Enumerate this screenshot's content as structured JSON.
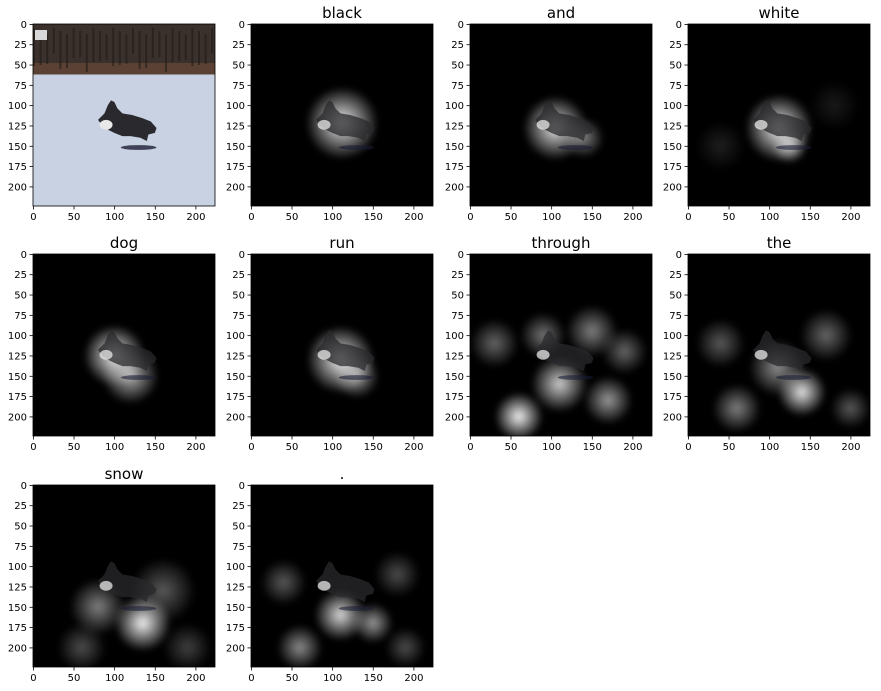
{
  "chart_data": {
    "type": "image-grid",
    "description": "Attention heatmaps over an image of a dog running in snow, one per generated caption word",
    "image_size": [
      224,
      224
    ],
    "x_ticks": [
      0,
      50,
      100,
      150,
      200
    ],
    "y_ticks": [
      0,
      25,
      50,
      75,
      100,
      125,
      150,
      175,
      200
    ],
    "panels": [
      {
        "title": "",
        "kind": "original",
        "blobs": []
      },
      {
        "title": "black",
        "kind": "attention",
        "blobs": [
          {
            "cx": 112,
            "cy": 122,
            "r": 45,
            "v": 0.95
          }
        ]
      },
      {
        "title": "and",
        "kind": "attention",
        "blobs": [
          {
            "cx": 105,
            "cy": 128,
            "r": 40,
            "v": 0.9
          },
          {
            "cx": 140,
            "cy": 140,
            "r": 25,
            "v": 0.5
          }
        ]
      },
      {
        "title": "white",
        "kind": "attention",
        "blobs": [
          {
            "cx": 112,
            "cy": 128,
            "r": 42,
            "v": 0.95
          },
          {
            "cx": 125,
            "cy": 150,
            "r": 22,
            "v": 0.7
          },
          {
            "cx": 40,
            "cy": 150,
            "r": 30,
            "v": 0.12
          },
          {
            "cx": 180,
            "cy": 100,
            "r": 30,
            "v": 0.1
          }
        ]
      },
      {
        "title": "dog",
        "kind": "attention",
        "blobs": [
          {
            "cx": 100,
            "cy": 125,
            "r": 38,
            "v": 0.95
          },
          {
            "cx": 120,
            "cy": 150,
            "r": 35,
            "v": 0.7
          }
        ]
      },
      {
        "title": "run",
        "kind": "attention",
        "blobs": [
          {
            "cx": 110,
            "cy": 130,
            "r": 42,
            "v": 0.95
          },
          {
            "cx": 130,
            "cy": 150,
            "r": 28,
            "v": 0.6
          }
        ]
      },
      {
        "title": "through",
        "kind": "attention",
        "blobs": [
          {
            "cx": 60,
            "cy": 200,
            "r": 30,
            "v": 0.95
          },
          {
            "cx": 110,
            "cy": 160,
            "r": 35,
            "v": 0.8
          },
          {
            "cx": 170,
            "cy": 180,
            "r": 30,
            "v": 0.6
          },
          {
            "cx": 150,
            "cy": 95,
            "r": 32,
            "v": 0.5
          },
          {
            "cx": 30,
            "cy": 110,
            "r": 30,
            "v": 0.4
          },
          {
            "cx": 190,
            "cy": 120,
            "r": 28,
            "v": 0.4
          },
          {
            "cx": 90,
            "cy": 100,
            "r": 28,
            "v": 0.45
          }
        ]
      },
      {
        "title": "the",
        "kind": "attention",
        "blobs": [
          {
            "cx": 140,
            "cy": 170,
            "r": 30,
            "v": 0.9
          },
          {
            "cx": 110,
            "cy": 140,
            "r": 35,
            "v": 0.55
          },
          {
            "cx": 60,
            "cy": 190,
            "r": 30,
            "v": 0.5
          },
          {
            "cx": 170,
            "cy": 100,
            "r": 32,
            "v": 0.4
          },
          {
            "cx": 40,
            "cy": 110,
            "r": 30,
            "v": 0.35
          },
          {
            "cx": 200,
            "cy": 190,
            "r": 25,
            "v": 0.35
          }
        ]
      },
      {
        "title": "snow",
        "kind": "attention",
        "blobs": [
          {
            "cx": 135,
            "cy": 170,
            "r": 35,
            "v": 0.95
          },
          {
            "cx": 80,
            "cy": 150,
            "r": 35,
            "v": 0.5
          },
          {
            "cx": 160,
            "cy": 130,
            "r": 40,
            "v": 0.35
          },
          {
            "cx": 60,
            "cy": 200,
            "r": 30,
            "v": 0.3
          },
          {
            "cx": 190,
            "cy": 200,
            "r": 30,
            "v": 0.25
          }
        ]
      },
      {
        "title": ".",
        "kind": "attention",
        "blobs": [
          {
            "cx": 110,
            "cy": 160,
            "r": 32,
            "v": 0.85
          },
          {
            "cx": 150,
            "cy": 170,
            "r": 25,
            "v": 0.6
          },
          {
            "cx": 60,
            "cy": 200,
            "r": 28,
            "v": 0.55
          },
          {
            "cx": 40,
            "cy": 120,
            "r": 28,
            "v": 0.35
          },
          {
            "cx": 180,
            "cy": 110,
            "r": 28,
            "v": 0.3
          },
          {
            "cx": 190,
            "cy": 200,
            "r": 25,
            "v": 0.3
          }
        ]
      }
    ]
  }
}
